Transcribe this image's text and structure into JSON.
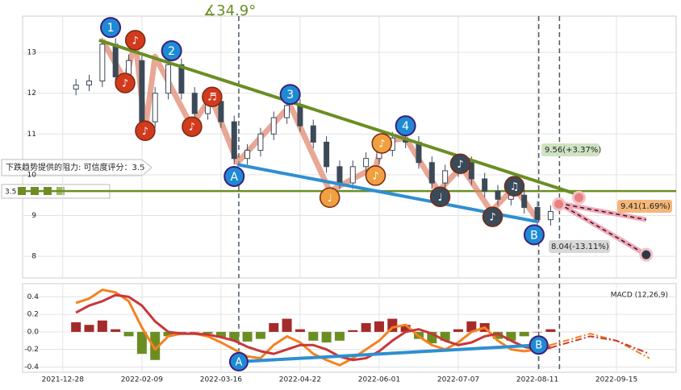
{
  "chart_data": [
    {
      "type": "candlestick",
      "x": [
        4,
        8,
        12,
        16,
        20,
        24,
        28,
        32,
        36,
        40,
        44,
        48,
        52,
        56,
        60,
        64,
        68,
        72,
        76,
        80,
        84,
        88,
        92,
        96,
        100,
        104,
        108,
        112,
        116,
        120,
        124,
        128,
        132,
        136,
        140,
        144,
        148
      ],
      "open": [
        12.1,
        12.2,
        12.3,
        13.2,
        12.4,
        12.8,
        11.3,
        12.0,
        12.7,
        12.0,
        11.5,
        11.8,
        11.3,
        10.4,
        10.6,
        11.0,
        11.4,
        11.7,
        11.2,
        10.8,
        10.2,
        9.8,
        10.2,
        10.4,
        10.6,
        10.9,
        10.8,
        10.3,
        9.8,
        10.1,
        10.3,
        9.9,
        9.6,
        9.4,
        9.5,
        9.2,
        8.9
      ],
      "close": [
        12.2,
        12.3,
        13.2,
        12.4,
        12.8,
        11.3,
        12.0,
        12.7,
        12.0,
        11.5,
        11.8,
        11.3,
        10.4,
        10.6,
        11.0,
        11.4,
        11.7,
        11.2,
        10.8,
        10.2,
        9.8,
        10.2,
        10.4,
        10.6,
        10.9,
        10.8,
        10.3,
        9.8,
        10.1,
        10.3,
        9.9,
        9.6,
        9.4,
        9.5,
        9.2,
        8.9,
        9.1
      ],
      "high": [
        12.35,
        12.45,
        13.35,
        13.35,
        12.95,
        12.95,
        12.15,
        12.85,
        12.85,
        12.15,
        11.95,
        11.95,
        11.45,
        10.75,
        11.15,
        11.55,
        11.85,
        11.85,
        11.35,
        10.95,
        10.35,
        10.35,
        10.55,
        10.75,
        11.05,
        11.05,
        10.95,
        10.45,
        10.25,
        10.45,
        10.45,
        10.05,
        9.75,
        9.65,
        9.65,
        9.35,
        9.25
      ],
      "low": [
        11.95,
        12.05,
        12.15,
        12.25,
        12.25,
        11.15,
        11.15,
        11.85,
        11.85,
        11.35,
        11.35,
        11.15,
        10.25,
        10.25,
        10.45,
        10.85,
        11.25,
        11.05,
        10.65,
        10.05,
        9.65,
        9.65,
        10.05,
        10.25,
        10.45,
        10.65,
        10.15,
        9.65,
        9.65,
        9.95,
        9.75,
        9.45,
        9.25,
        9.25,
        9.05,
        8.75,
        8.75
      ],
      "color": "#3c4a58",
      "xlim": [
        -12.2,
        186.1
      ],
      "xticks": [
        {
          "value": 0,
          "label": "2021-12-28"
        },
        {
          "value": 24,
          "label": "2022-02-09"
        },
        {
          "value": 48,
          "label": "2022-03-16"
        },
        {
          "value": 72,
          "label": "2022-04-22"
        },
        {
          "value": 96,
          "label": "2022-06-01"
        },
        {
          "value": 120,
          "label": "2022-07-07"
        },
        {
          "value": 144,
          "label": "2022-08-11"
        },
        {
          "value": 168,
          "label": "2022-09-15"
        }
      ],
      "ylim": [
        7.47,
        13.89
      ],
      "yticks": [
        8,
        9,
        10,
        11,
        12,
        13
      ],
      "grid": true,
      "event_days": [
        53.4,
        144.4,
        150.7
      ],
      "angle_label": "∡34.9°",
      "resistance_label": "下跌趋势提供的阻力: 可信度评分：3.5",
      "rating_label": "3.5",
      "level": {
        "value": 9.6,
        "color": "#6b8e23"
      },
      "resistance_line": {
        "x": [
          11,
          155
        ],
        "y": [
          13.3,
          9.55
        ],
        "color": "#6b8e23"
      },
      "support_line": {
        "x": [
          53,
          144
        ],
        "y": [
          10.25,
          8.85
        ],
        "color": "#2f8fd0"
      },
      "zigzag": {
        "x": [
          12,
          19,
          22,
          25,
          28,
          39,
          45,
          53,
          69,
          81,
          95,
          97,
          104,
          114,
          121,
          130,
          137,
          144
        ],
        "y": [
          13.3,
          12.3,
          13.3,
          11.1,
          12.9,
          11.2,
          11.9,
          10.3,
          11.7,
          9.6,
          10.2,
          10.8,
          10.9,
          9.6,
          10.2,
          9.1,
          9.7,
          8.9
        ],
        "color": "#e0826a"
      },
      "pivots": [
        {
          "label": "1",
          "x": 14.5,
          "y": 13.61
        },
        {
          "label": "2",
          "x": 33,
          "y": 13.04
        },
        {
          "label": "3",
          "x": 69,
          "y": 11.97
        },
        {
          "label": "4",
          "x": 104,
          "y": 11.2
        },
        {
          "label": "A",
          "x": 52,
          "y": 9.96
        },
        {
          "label": "B",
          "x": 143,
          "y": 8.53
        }
      ],
      "notes": [
        {
          "symbol": "♪",
          "x": 22,
          "y": 13.3,
          "color": "#d23a1e"
        },
        {
          "symbol": "♪",
          "x": 18.9,
          "y": 12.25,
          "color": "#d23a1e"
        },
        {
          "symbol": "♪",
          "x": 25,
          "y": 11.08,
          "color": "#d23a1e"
        },
        {
          "symbol": "♪",
          "x": 39.2,
          "y": 11.18,
          "color": "#d23a1e"
        },
        {
          "symbol": "♬",
          "x": 45.3,
          "y": 11.91,
          "color": "#d23a1e"
        },
        {
          "symbol": "♩",
          "x": 81,
          "y": 9.44,
          "color": "#f0a040"
        },
        {
          "symbol": "♪",
          "x": 94.9,
          "y": 9.98,
          "color": "#f0a040"
        },
        {
          "symbol": "♪",
          "x": 96.8,
          "y": 10.77,
          "color": "#f0a040"
        },
        {
          "symbol": "♩",
          "x": 114.5,
          "y": 9.46,
          "color": "#3a4a58"
        },
        {
          "symbol": "♪",
          "x": 120.6,
          "y": 10.27,
          "color": "#3a4a58"
        },
        {
          "symbol": "♪",
          "x": 130.4,
          "y": 8.97,
          "color": "#3a4a58"
        },
        {
          "symbol": "♫",
          "x": 137,
          "y": 9.72,
          "color": "#3a4a58"
        }
      ],
      "projections": [
        {
          "x": [
            150.5,
            177
          ],
          "y": [
            9.3,
            8.04
          ]
        },
        {
          "x": [
            150.5,
            177
          ],
          "y": [
            9.3,
            8.9
          ]
        }
      ],
      "targets": [
        {
          "x": 150.5,
          "y": 9.28
        },
        {
          "x": 156.6,
          "y": 9.44
        },
        {
          "x": 177,
          "y": 8.04
        }
      ],
      "price_labels": [
        "9.56(+3.37%)",
        "9.41(1.69%)",
        "8.04(-13.11%)"
      ]
    },
    {
      "type": "macd",
      "label": "MACD (12,26,9)",
      "x": [
        4,
        8,
        12,
        16,
        20,
        24,
        28,
        32,
        36,
        40,
        44,
        48,
        52,
        56,
        60,
        64,
        68,
        72,
        76,
        80,
        84,
        88,
        92,
        96,
        100,
        104,
        108,
        112,
        116,
        120,
        124,
        128,
        132,
        136,
        140,
        144,
        148
      ],
      "series": [
        {
          "color": "#f5821f",
          "values": [
            0.33,
            0.38,
            0.48,
            0.45,
            0.35,
            0.05,
            -0.2,
            -0.05,
            -0.02,
            -0.02,
            -0.05,
            -0.12,
            -0.2,
            -0.28,
            -0.3,
            -0.15,
            -0.05,
            -0.12,
            -0.25,
            -0.32,
            -0.38,
            -0.3,
            -0.2,
            -0.1,
            0.05,
            0.08,
            -0.05,
            -0.15,
            -0.2,
            -0.12,
            0.0,
            0.05,
            -0.1,
            -0.2,
            -0.22,
            -0.2,
            -0.15
          ]
        },
        {
          "color": "#c8373a",
          "values": [
            0.22,
            0.3,
            0.35,
            0.42,
            0.4,
            0.3,
            0.12,
            0.0,
            -0.02,
            -0.02,
            -0.03,
            -0.06,
            -0.1,
            -0.17,
            -0.22,
            -0.25,
            -0.2,
            -0.15,
            -0.15,
            -0.2,
            -0.28,
            -0.32,
            -0.3,
            -0.22,
            -0.1,
            0.0,
            0.03,
            -0.02,
            -0.1,
            -0.15,
            -0.12,
            -0.05,
            -0.02,
            -0.1,
            -0.17,
            -0.2,
            -0.18
          ]
        }
      ],
      "histogram": {
        "values": [
          0.11,
          0.08,
          0.13,
          0.03,
          -0.05,
          -0.25,
          -0.32,
          -0.05,
          0,
          0,
          -0.02,
          -0.06,
          -0.1,
          -0.11,
          -0.08,
          0.1,
          0.15,
          0.03,
          -0.1,
          -0.12,
          -0.1,
          0.02,
          0.1,
          0.12,
          0.15,
          0.08,
          -0.08,
          -0.13,
          -0.1,
          0.03,
          0.12,
          0.1,
          -0.08,
          -0.1,
          -0.05,
          0,
          0.03
        ],
        "up_color": "#a52a2a",
        "down_color": "#6b8e23"
      },
      "projection": {
        "x": [
          148,
          160,
          168,
          178
        ],
        "series": [
          [
            -0.15,
            -0.02,
            -0.1,
            -0.3
          ],
          [
            -0.18,
            -0.05,
            -0.1,
            -0.25
          ]
        ]
      },
      "divergence": {
        "labels": [
          "A",
          "B"
        ],
        "x": [
          53.4,
          144.4
        ],
        "y": [
          -0.34,
          -0.15
        ],
        "color": "#2f8fd0"
      },
      "xlim": [
        -12.2,
        186.1
      ],
      "ylim": [
        -0.46,
        0.55
      ],
      "yticks": [
        0.4,
        0.2,
        {
          "value": 0,
          "label": "0.0"
        },
        -0.2,
        -0.4
      ],
      "grid": true
    }
  ]
}
